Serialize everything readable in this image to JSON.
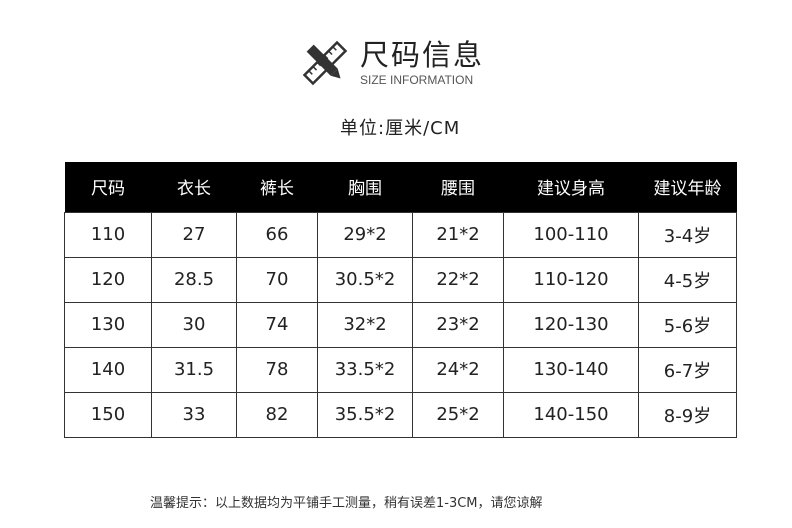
{
  "header": {
    "title": "尺码信息",
    "subtitle": "SIZE INFORMATION",
    "logo_icon": "ruler-pencil-icon",
    "unit": "单位:厘米/CM"
  },
  "table": {
    "columns": [
      "尺码",
      "衣长",
      "裤长",
      "胸围",
      "腰围",
      "建议身高",
      "建议年龄"
    ],
    "rows": [
      [
        "110",
        "27",
        "66",
        "29*2",
        "21*2",
        "100-110",
        "3-4岁"
      ],
      [
        "120",
        "28.5",
        "70",
        "30.5*2",
        "22*2",
        "110-120",
        "4-5岁"
      ],
      [
        "130",
        "30",
        "74",
        "32*2",
        "23*2",
        "120-130",
        "5-6岁"
      ],
      [
        "140",
        "31.5",
        "78",
        "33.5*2",
        "24*2",
        "130-140",
        "6-7岁"
      ],
      [
        "150",
        "33",
        "82",
        "35.5*2",
        "25*2",
        "140-150",
        "8-9岁"
      ]
    ]
  },
  "footer": {
    "note": "温馨提示：以上数据均为平铺手工测量，稍有误差1-3CM，请您谅解"
  }
}
